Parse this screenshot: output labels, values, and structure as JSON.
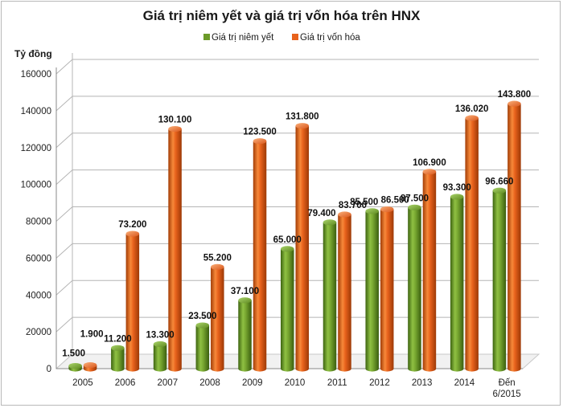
{
  "chart_data": {
    "type": "bar",
    "title": "Giá trị niêm yết và giá trị vốn hóa trên HNX",
    "ylabel": "Tỷ đồng",
    "xlabel": "",
    "categories": [
      "2005",
      "2006",
      "2007",
      "2008",
      "2009",
      "2010",
      "2011",
      "2012",
      "2013",
      "2014",
      "Đến 6/2015"
    ],
    "series": [
      {
        "name": "Giá trị niêm yết",
        "color": "#6b9a28",
        "values": [
          1500,
          11200,
          13300,
          23500,
          37100,
          65000,
          79400,
          85500,
          87500,
          93300,
          96660
        ],
        "labels": [
          "1.500",
          "11.200",
          "13.300",
          "23.500",
          "37.100",
          "65.000",
          "79.400",
          "85.500",
          "87.500",
          "93.300",
          "96.660"
        ]
      },
      {
        "name": "Giá trị vốn hóa",
        "color": "#e8621c",
        "values": [
          1900,
          73200,
          130100,
          55200,
          123500,
          131800,
          83700,
          86500,
          106900,
          136020,
          143800
        ],
        "labels": [
          "1.900",
          "73.200",
          "130.100",
          "55.200",
          "123.500",
          "131.800",
          "83.700",
          "86.500",
          "106.900",
          "136.020",
          "143.800"
        ]
      }
    ],
    "ylim": [
      0,
      160000
    ],
    "yticks": [
      0,
      20000,
      40000,
      60000,
      80000,
      100000,
      120000,
      140000,
      160000
    ],
    "grid": true,
    "legend": "top-center",
    "style": "3d-cylinder"
  }
}
